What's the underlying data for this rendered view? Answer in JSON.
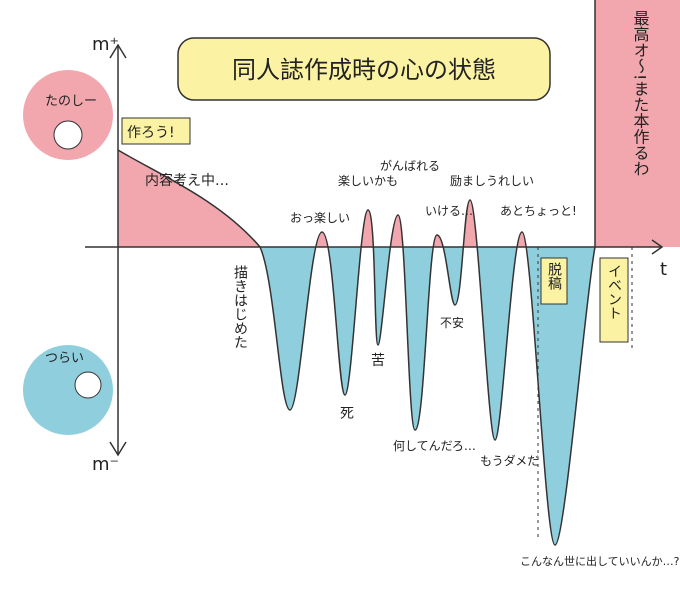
{
  "title": "同人誌作成時の心の状態",
  "axes": {
    "y_top": "m⁺",
    "y_bottom": "m⁻",
    "x": "t"
  },
  "faces": {
    "happy": "たのしー",
    "sad": "つらい"
  },
  "labels": {
    "start": "作ろう!",
    "thinking": "内容考え中…",
    "begin": "描きはじめた",
    "fun1": "おっ楽しい",
    "death": "死",
    "fun2": "楽しいかも",
    "pain": "苦",
    "doable": "がんばれる",
    "what": "何してんだろ…",
    "can": "いける…",
    "anxiety": "不安",
    "cheer": "励ましうれしい",
    "nomore": "もうダメだ",
    "almost": "あとちょっと!",
    "done": "脱稿",
    "worry": "こんなん世に出していいんか…?",
    "event": "イベント",
    "best": "最高オ〜!また本作るわ"
  }
}
